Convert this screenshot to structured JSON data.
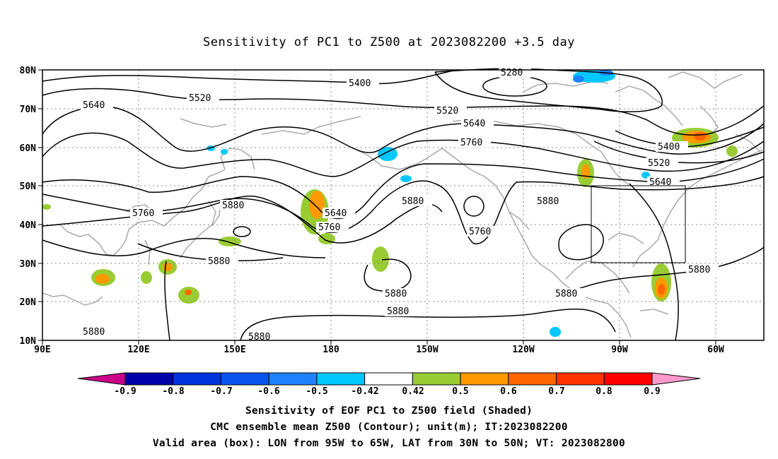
{
  "title": "Sensitivity of PC1 to Z500 at 2023082200 +3.5 day",
  "map": {
    "lon_labels": [
      "90E",
      "120E",
      "150E",
      "180",
      "150W",
      "120W",
      "90W",
      "60W"
    ],
    "lat_labels": [
      "80N",
      "70N",
      "60N",
      "50N",
      "40N",
      "30N",
      "20N",
      "10N"
    ],
    "valid_box": {
      "lon_range": [
        "95W",
        "65W"
      ],
      "lat_range": [
        "30N",
        "50N"
      ]
    },
    "contour_labels": [
      "5280",
      "5400",
      "5520",
      "5640",
      "5760",
      "5880",
      "5520",
      "5640",
      "5760",
      "5880",
      "5400",
      "5520",
      "5640",
      "5760",
      "5640",
      "5760",
      "5880",
      "5880",
      "5880",
      "5880",
      "5880",
      "5880",
      "5880",
      "5880"
    ]
  },
  "colorbar": {
    "labels": [
      "-0.9",
      "-0.8",
      "-0.7",
      "-0.6",
      "-0.5",
      "-0.42",
      "0.42",
      "0.5",
      "0.6",
      "0.7",
      "0.8",
      "0.9"
    ],
    "colors": [
      "#0000aa",
      "#0033dd",
      "#0a55f0",
      "#1e82ff",
      "#00c8ff",
      "#ffffff",
      "#99cc33",
      "#ff9900",
      "#ff6600",
      "#ff3300",
      "#ff0000"
    ],
    "below_color": "#cc0088",
    "above_color": "#ff99cc"
  },
  "captions": {
    "line1": "Sensitivity of EOF PC1 to Z500 field (Shaded)",
    "line2": "CMC ensemble mean Z500 (Contour); unit(m); IT:2023082200",
    "line3": "Valid area (box): LON from 95W to 65W, LAT from 30N to 50N; VT: 2023082800"
  }
}
